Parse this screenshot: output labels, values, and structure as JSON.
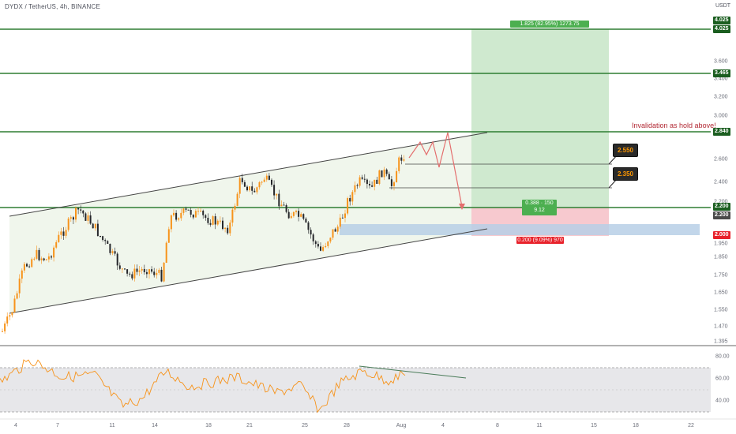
{
  "header": {
    "symbol_line": "DYDX / TetherUS, 4h, BINANCE",
    "unit": "USDT"
  },
  "price_axis": [
    "4.025",
    "3.600",
    "3.400",
    "3.200",
    "3.000",
    "2.600",
    "2.400",
    "2.200",
    "1.950",
    "1.850",
    "1.750",
    "1.650",
    "1.550",
    "1.470",
    "1.395"
  ],
  "tags": {
    "t4025a": "4.025",
    "t4025b": "4.025",
    "t3465": "3.465",
    "t2840": "2.840",
    "t2200a": "2.200",
    "t2200b": "2.200",
    "t2000": "2.000"
  },
  "levels": {
    "resistance_1": 4.025,
    "resistance_2": 3.465,
    "invalidation": 2.84,
    "support": 2.2,
    "stop": 2.0
  },
  "annotations": {
    "target_box": "1.825 (82.95%) 1273.75",
    "entry_box_1": "0.388 · 150",
    "entry_box_2": "9.12",
    "stop_box": "0.200 (9.09%) 970",
    "callout_1": "2.550",
    "callout_2": "2.350",
    "invalidation_note": "Invalidation as hold above!"
  },
  "rsi_axis": [
    "80.00",
    "60.00",
    "40.00"
  ],
  "time_axis": [
    "4",
    "7",
    "11",
    "14",
    "18",
    "21",
    "25",
    "28",
    "Aug",
    "4",
    "8",
    "11",
    "15",
    "18",
    "22"
  ],
  "colors": {
    "green_line": "#2e7d32",
    "bull": "#f7931a",
    "bear": "#26272b",
    "target_fill": "#cfe9cf",
    "stop_fill": "#f8c9cf",
    "rsi_line": "#f7931a",
    "trend": "#4a7c59",
    "tag_green": "#1b5e20",
    "tag_red": "#e8222b",
    "tag_gray": "#4a4a4a"
  }
}
